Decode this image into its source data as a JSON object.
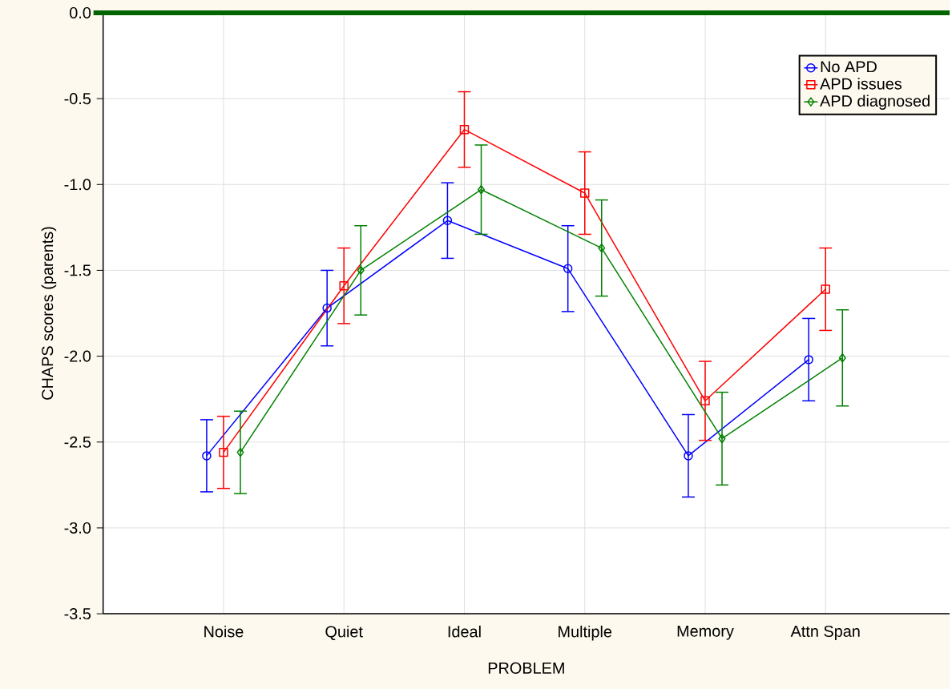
{
  "chart_data": {
    "type": "line",
    "xlabel": "PROBLEM",
    "ylabel": "CHAPS scores (parents)",
    "categories": [
      "Noise",
      "Quiet",
      "Ideal",
      "Multiple",
      "Memory",
      "Attn Span"
    ],
    "series": [
      {
        "name": "No APD",
        "color": "#0000ff",
        "marker": "circle",
        "values": [
          -2.58,
          -1.72,
          -1.21,
          -1.49,
          -2.58,
          -2.02
        ],
        "errors": [
          0.21,
          0.22,
          0.22,
          0.25,
          0.24,
          0.24
        ]
      },
      {
        "name": "APD issues",
        "color": "#ff0000",
        "marker": "square",
        "values": [
          -2.56,
          -1.59,
          -0.68,
          -1.05,
          -2.26,
          -1.61
        ],
        "errors": [
          0.21,
          0.22,
          0.22,
          0.24,
          0.23,
          0.24
        ]
      },
      {
        "name": "APD diagnosed",
        "color": "#008000",
        "marker": "diamond",
        "values": [
          -2.56,
          -1.5,
          -1.03,
          -1.37,
          -2.48,
          -2.01
        ],
        "errors": [
          0.24,
          0.26,
          0.26,
          0.28,
          0.27,
          0.28
        ]
      }
    ],
    "ylim": [
      -3.5,
      0
    ],
    "yticks": [
      {
        "value": 0,
        "label": "0.0"
      },
      {
        "value": -0.5,
        "label": "-0.5"
      },
      {
        "value": -1,
        "label": "-1.0"
      },
      {
        "value": -1.5,
        "label": "-1.5"
      },
      {
        "value": -2,
        "label": "-2.0"
      },
      {
        "value": -2.5,
        "label": "-2.5"
      },
      {
        "value": -3,
        "label": "-3.0"
      },
      {
        "value": -3.5,
        "label": "-3.5"
      }
    ],
    "ref_lines": [
      {
        "axis": "y",
        "value": 0,
        "color": "#006400"
      }
    ],
    "grid": true,
    "legend": "top right",
    "line_style": "solid"
  }
}
